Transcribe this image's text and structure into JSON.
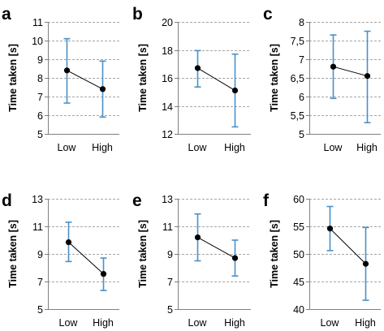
{
  "colors": {
    "errorbar": "#4A90C8",
    "line": "#000000",
    "gridline": "#A6A6A6",
    "axis": "#808080"
  },
  "chart_data": [
    {
      "panel": "a",
      "type": "line",
      "ylabel": "Time taken [s]",
      "categories": [
        "Low",
        "High"
      ],
      "values": [
        8.4,
        7.4
      ],
      "error_low": [
        6.65,
        5.9
      ],
      "error_high": [
        10.1,
        8.9
      ],
      "ylim": [
        5,
        11
      ],
      "yticks": [
        5,
        6,
        7,
        8,
        9,
        10,
        11
      ],
      "ytick_labels": [
        "5",
        "6",
        "7",
        "8",
        "9",
        "10",
        "11"
      ],
      "grid": true
    },
    {
      "panel": "b",
      "type": "line",
      "ylabel": "Time taken [s]",
      "categories": [
        "Low",
        "High"
      ],
      "values": [
        16.7,
        15.1
      ],
      "error_low": [
        15.35,
        12.5
      ],
      "error_high": [
        17.95,
        17.7
      ],
      "ylim": [
        12,
        20
      ],
      "yticks": [
        12,
        14,
        16,
        18,
        20
      ],
      "ytick_labels": [
        "12",
        "14",
        "16",
        "18",
        "20"
      ],
      "grid": true
    },
    {
      "panel": "c",
      "type": "line",
      "ylabel": "Time taken [s]",
      "categories": [
        "Low",
        "High"
      ],
      "values": [
        6.8,
        6.55
      ],
      "error_low": [
        5.95,
        5.3
      ],
      "error_high": [
        7.65,
        7.75
      ],
      "ylim": [
        5,
        8
      ],
      "yticks": [
        5,
        5.5,
        6,
        6.5,
        7,
        7.5,
        8
      ],
      "ytick_labels": [
        "5",
        "5,5",
        "6",
        "6,5",
        "7",
        "7,5",
        "8"
      ],
      "grid": true
    },
    {
      "panel": "d",
      "type": "line",
      "ylabel": "Time taken [s]",
      "categories": [
        "Low",
        "High"
      ],
      "values": [
        9.85,
        7.55
      ],
      "error_low": [
        8.45,
        6.35
      ],
      "error_high": [
        11.3,
        8.7
      ],
      "ylim": [
        5,
        13
      ],
      "yticks": [
        5,
        7,
        9,
        11,
        13
      ],
      "ytick_labels": [
        "5",
        "7",
        "9",
        "11",
        "13"
      ],
      "grid": true
    },
    {
      "panel": "e",
      "type": "line",
      "ylabel": "Time taken [s]",
      "categories": [
        "Low",
        "High"
      ],
      "values": [
        10.2,
        8.7
      ],
      "error_low": [
        8.5,
        7.4
      ],
      "error_high": [
        11.9,
        10.0
      ],
      "ylim": [
        5,
        13
      ],
      "yticks": [
        5,
        7,
        9,
        11,
        13
      ],
      "ytick_labels": [
        "5",
        "7",
        "9",
        "11",
        "13"
      ],
      "grid": true
    },
    {
      "panel": "f",
      "type": "line",
      "ylabel": "Time taken [s]",
      "categories": [
        "Low",
        "High"
      ],
      "values": [
        54.6,
        48.2
      ],
      "error_low": [
        50.6,
        41.6
      ],
      "error_high": [
        58.6,
        54.8
      ],
      "ylim": [
        40,
        60
      ],
      "yticks": [
        40,
        45,
        50,
        55,
        60
      ],
      "ytick_labels": [
        "40",
        "45",
        "50",
        "55",
        "60"
      ],
      "grid": true
    }
  ]
}
